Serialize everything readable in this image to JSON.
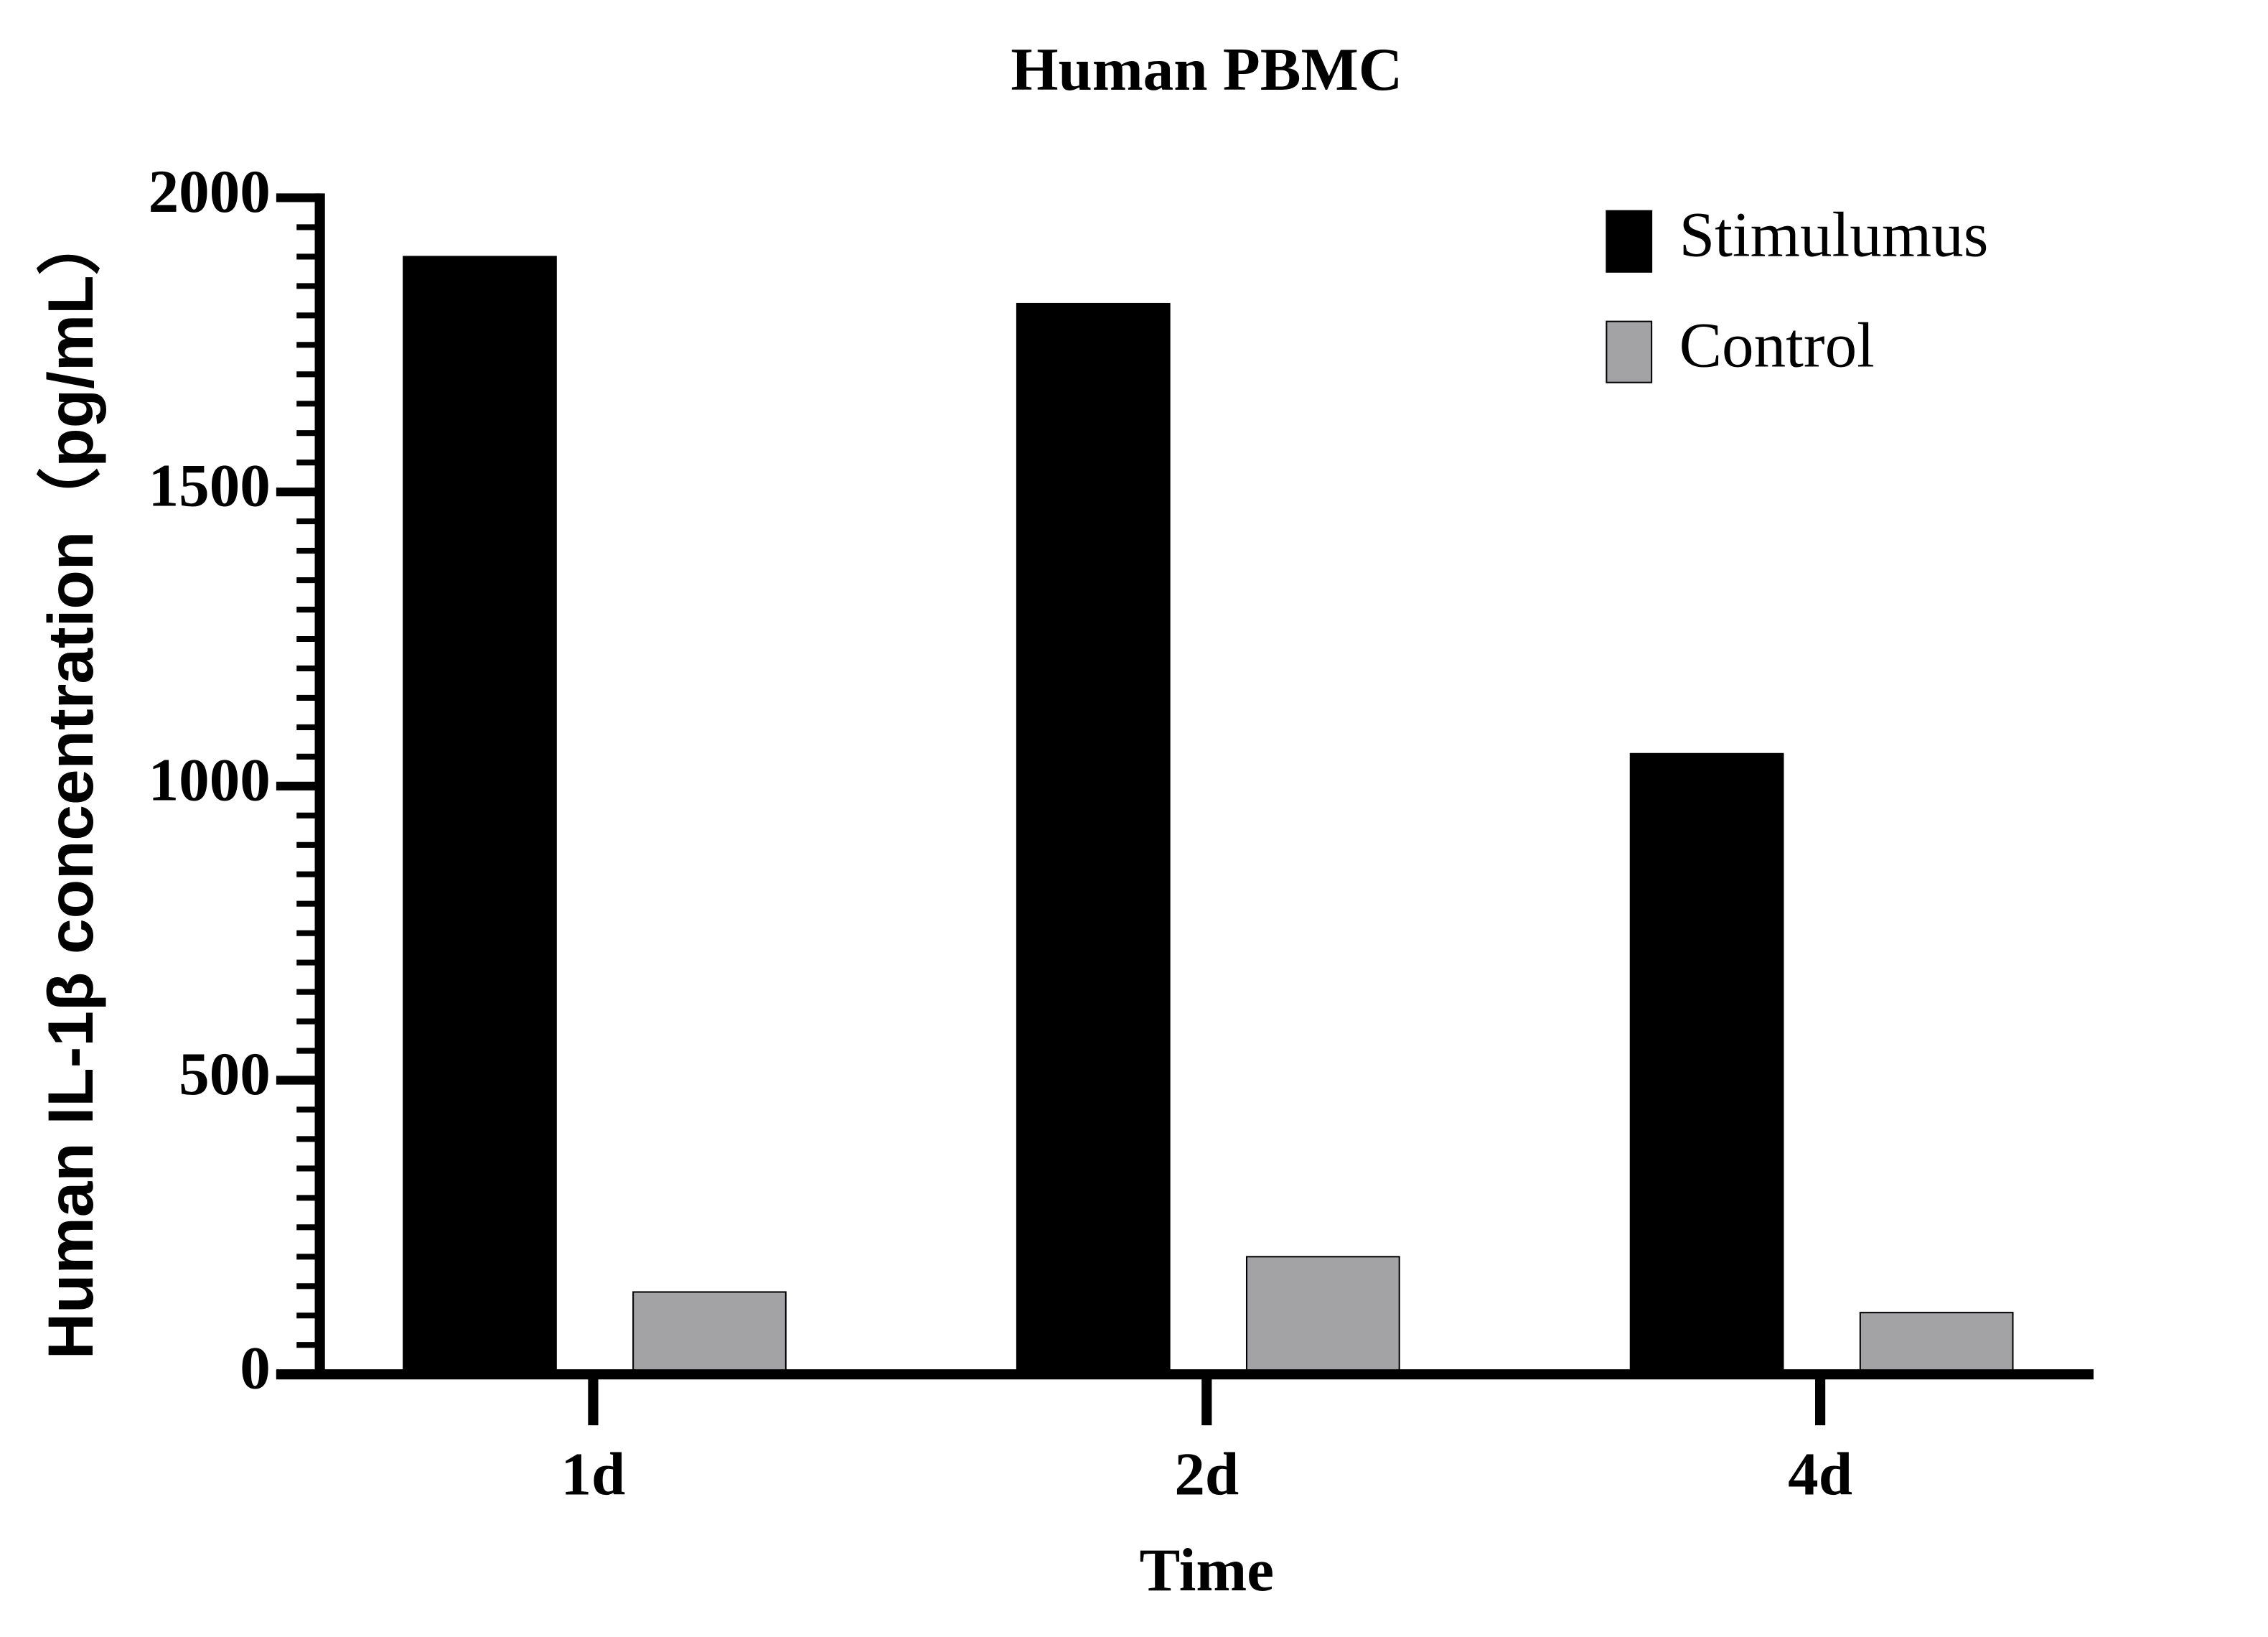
{
  "chart_data": {
    "type": "bar",
    "title": "Human PBMC",
    "x_label": "Time",
    "y_label": "Human IL-1β concentration（pg/mL）",
    "categories": [
      "1d",
      "2d",
      "4d"
    ],
    "series": [
      {
        "name": "Stimulumus",
        "color": "#000000",
        "values": [
          1900,
          1820,
          1055
        ]
      },
      {
        "name": "Control",
        "color": "#a3a3a6",
        "values": [
          140,
          200,
          105
        ]
      }
    ],
    "ylim": [
      0,
      2000
    ],
    "yticks": [
      0,
      500,
      1000,
      1500,
      2000
    ],
    "yminor_ticks": [
      0,
      50,
      100,
      150,
      200,
      250,
      300,
      350,
      400,
      450,
      500,
      550,
      600,
      650,
      700,
      750,
      800,
      850,
      900,
      950,
      1000,
      1050,
      1100,
      1150,
      1200,
      1250,
      1300,
      1350,
      1400,
      1450,
      1500,
      1550,
      1600,
      1650,
      1700,
      1750,
      1800,
      1850,
      1900,
      1950,
      2000
    ],
    "legend": "upper right",
    "grid": false
  }
}
